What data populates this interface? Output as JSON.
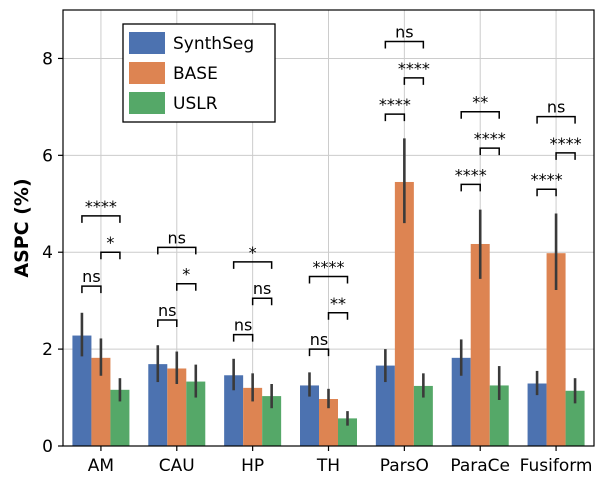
{
  "chart_data": {
    "type": "bar",
    "ylabel": "ASPC (%)",
    "xlabel": "",
    "ylim": [
      0,
      9
    ],
    "yticks": [
      "0",
      "2",
      "4",
      "6",
      "8"
    ],
    "grid": true,
    "legend_position": "top-left",
    "categories": [
      "AM",
      "CAU",
      "HP",
      "TH",
      "ParsO",
      "ParaCe",
      "Fusiform"
    ],
    "series": [
      {
        "name": "SynthSeg",
        "color": "#4c72b0",
        "values": [
          2.28,
          1.69,
          1.46,
          1.25,
          1.66,
          1.82,
          1.29
        ],
        "err_low": [
          1.85,
          1.32,
          1.15,
          1.02,
          1.32,
          1.45,
          1.05
        ],
        "err_high": [
          2.75,
          2.08,
          1.8,
          1.52,
          2.0,
          2.2,
          1.55
        ]
      },
      {
        "name": "BASE",
        "color": "#dd8452",
        "values": [
          1.82,
          1.6,
          1.2,
          0.97,
          5.45,
          4.17,
          3.98
        ],
        "err_low": [
          1.45,
          1.28,
          0.92,
          0.78,
          4.6,
          3.45,
          3.22
        ],
        "err_high": [
          2.22,
          1.95,
          1.5,
          1.18,
          6.35,
          4.88,
          4.8
        ]
      },
      {
        "name": "USLR",
        "color": "#55a868",
        "values": [
          1.16,
          1.33,
          1.03,
          0.57,
          1.24,
          1.25,
          1.14
        ],
        "err_low": [
          0.92,
          1.0,
          0.78,
          0.42,
          1.0,
          0.95,
          0.88
        ],
        "err_high": [
          1.4,
          1.68,
          1.28,
          0.72,
          1.5,
          1.65,
          1.4
        ]
      }
    ],
    "significance": [
      {
        "category": "AM",
        "pair": [
          0,
          1
        ],
        "y": 3.3,
        "label": "ns"
      },
      {
        "category": "AM",
        "pair": [
          1,
          2
        ],
        "y": 4.0,
        "label": "*"
      },
      {
        "category": "AM",
        "pair": [
          0,
          2
        ],
        "y": 4.75,
        "label": "****"
      },
      {
        "category": "CAU",
        "pair": [
          0,
          1
        ],
        "y": 2.6,
        "label": "ns"
      },
      {
        "category": "CAU",
        "pair": [
          1,
          2
        ],
        "y": 3.35,
        "label": "*"
      },
      {
        "category": "CAU",
        "pair": [
          0,
          2
        ],
        "y": 4.1,
        "label": "ns"
      },
      {
        "category": "HP",
        "pair": [
          0,
          1
        ],
        "y": 2.3,
        "label": "ns"
      },
      {
        "category": "HP",
        "pair": [
          1,
          2
        ],
        "y": 3.05,
        "label": "ns"
      },
      {
        "category": "HP",
        "pair": [
          0,
          2
        ],
        "y": 3.8,
        "label": "*"
      },
      {
        "category": "TH",
        "pair": [
          0,
          1
        ],
        "y": 2.0,
        "label": "ns"
      },
      {
        "category": "TH",
        "pair": [
          1,
          2
        ],
        "y": 2.75,
        "label": "**"
      },
      {
        "category": "TH",
        "pair": [
          0,
          2
        ],
        "y": 3.5,
        "label": "****"
      },
      {
        "category": "ParsO",
        "pair": [
          0,
          1
        ],
        "y": 6.85,
        "label": "****"
      },
      {
        "category": "ParsO",
        "pair": [
          1,
          2
        ],
        "y": 7.6,
        "label": "****"
      },
      {
        "category": "ParsO",
        "pair": [
          0,
          2
        ],
        "y": 8.35,
        "label": "ns"
      },
      {
        "category": "ParaCe",
        "pair": [
          0,
          1
        ],
        "y": 5.4,
        "label": "****"
      },
      {
        "category": "ParaCe",
        "pair": [
          1,
          2
        ],
        "y": 6.15,
        "label": "****"
      },
      {
        "category": "ParaCe",
        "pair": [
          0,
          2
        ],
        "y": 6.9,
        "label": "**"
      },
      {
        "category": "Fusiform",
        "pair": [
          0,
          1
        ],
        "y": 5.3,
        "label": "****"
      },
      {
        "category": "Fusiform",
        "pair": [
          1,
          2
        ],
        "y": 6.05,
        "label": "****"
      },
      {
        "category": "Fusiform",
        "pair": [
          0,
          2
        ],
        "y": 6.8,
        "label": "ns"
      }
    ]
  }
}
